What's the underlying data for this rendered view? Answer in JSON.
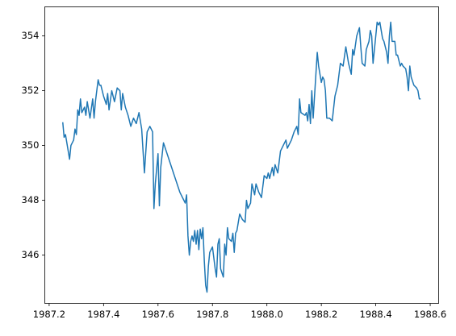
{
  "chart_data": {
    "type": "line",
    "color": "#1f77b4",
    "x": [
      1987.25,
      1987.255,
      1987.26,
      1987.27,
      1987.275,
      1987.28,
      1987.29,
      1987.295,
      1987.3,
      1987.305,
      1987.31,
      1987.315,
      1987.32,
      1987.33,
      1987.335,
      1987.34,
      1987.35,
      1987.36,
      1987.365,
      1987.37,
      1987.38,
      1987.385,
      1987.39,
      1987.4,
      1987.41,
      1987.415,
      1987.42,
      1987.43,
      1987.44,
      1987.45,
      1987.46,
      1987.465,
      1987.47,
      1987.48,
      1987.49,
      1987.5,
      1987.51,
      1987.52,
      1987.53,
      1987.54,
      1987.545,
      1987.55,
      1987.56,
      1987.57,
      1987.58,
      1987.585,
      1987.59,
      1987.6,
      1987.605,
      1987.61,
      1987.62,
      1987.64,
      1987.66,
      1987.68,
      1987.7,
      1987.705,
      1987.71,
      1987.715,
      1987.72,
      1987.725,
      1987.73,
      1987.735,
      1987.74,
      1987.745,
      1987.75,
      1987.755,
      1987.76,
      1987.765,
      1987.77,
      1987.775,
      1987.78,
      1987.785,
      1987.79,
      1987.8,
      1987.81,
      1987.815,
      1987.82,
      1987.825,
      1987.83,
      1987.84,
      1987.845,
      1987.85,
      1987.855,
      1987.86,
      1987.87,
      1987.875,
      1987.88,
      1987.885,
      1987.89,
      1987.9,
      1987.91,
      1987.92,
      1987.925,
      1987.93,
      1987.94,
      1987.945,
      1987.955,
      1987.96,
      1987.97,
      1987.98,
      1987.99,
      1988.0,
      1988.005,
      1988.01,
      1988.02,
      1988.025,
      1988.03,
      1988.04,
      1988.05,
      1988.06,
      1988.07,
      1988.075,
      1988.09,
      1988.1,
      1988.11,
      1988.115,
      1988.12,
      1988.125,
      1988.14,
      1988.145,
      1988.15,
      1988.155,
      1988.16,
      1988.165,
      1988.17,
      1988.18,
      1988.185,
      1988.19,
      1988.2,
      1988.205,
      1988.21,
      1988.215,
      1988.22,
      1988.23,
      1988.24,
      1988.25,
      1988.26,
      1988.27,
      1988.28,
      1988.29,
      1988.3,
      1988.31,
      1988.315,
      1988.32,
      1988.33,
      1988.34,
      1988.345,
      1988.35,
      1988.36,
      1988.365,
      1988.375,
      1988.38,
      1988.385,
      1988.39,
      1988.4,
      1988.405,
      1988.41,
      1988.415,
      1988.42,
      1988.425,
      1988.43,
      1988.44,
      1988.445,
      1988.45,
      1988.455,
      1988.46,
      1988.47,
      1988.475,
      1988.48,
      1988.49,
      1988.495,
      1988.5,
      1988.51,
      1988.515,
      1988.52,
      1988.525,
      1988.53,
      1988.54,
      1988.55,
      1988.555,
      1988.56,
      1988.565
    ],
    "values": [
      350.85,
      350.3,
      350.4,
      349.8,
      349.5,
      350.0,
      350.2,
      350.6,
      350.4,
      351.3,
      351.1,
      351.7,
      351.2,
      351.4,
      351.1,
      351.6,
      351.0,
      351.7,
      351.0,
      351.6,
      352.4,
      352.2,
      352.2,
      351.8,
      351.5,
      351.9,
      351.3,
      352.0,
      351.6,
      352.1,
      352.0,
      351.3,
      351.9,
      351.4,
      351.1,
      350.7,
      351.0,
      350.8,
      351.2,
      350.6,
      349.8,
      349.0,
      350.5,
      350.7,
      350.5,
      347.7,
      348.6,
      349.7,
      347.8,
      349.2,
      350.1,
      349.5,
      348.9,
      348.3,
      347.9,
      348.2,
      346.7,
      346.0,
      346.5,
      346.7,
      346.5,
      346.9,
      346.4,
      346.9,
      346.2,
      346.95,
      346.6,
      347.0,
      345.8,
      344.9,
      344.65,
      345.6,
      346.1,
      346.3,
      345.5,
      345.2,
      346.4,
      346.6,
      345.5,
      345.2,
      346.4,
      346.0,
      347.0,
      346.6,
      346.5,
      346.8,
      346.1,
      346.8,
      346.9,
      347.5,
      347.3,
      347.2,
      348.0,
      347.7,
      347.9,
      348.6,
      348.2,
      348.6,
      348.3,
      348.1,
      348.9,
      348.8,
      349.0,
      348.8,
      349.2,
      348.9,
      349.3,
      349.0,
      349.8,
      350.0,
      350.2,
      349.9,
      350.2,
      350.5,
      350.7,
      350.4,
      351.7,
      351.2,
      351.1,
      351.2,
      350.9,
      351.5,
      350.8,
      352.0,
      351.0,
      352.6,
      353.4,
      352.9,
      352.3,
      352.5,
      352.4,
      352.0,
      351.0,
      351.0,
      350.9,
      351.8,
      352.2,
      353.0,
      352.9,
      353.6,
      353.0,
      352.6,
      353.5,
      353.3,
      354.0,
      354.3,
      353.6,
      353.0,
      352.9,
      353.5,
      353.8,
      354.2,
      354.0,
      353.0,
      354.0,
      354.5,
      354.4,
      354.5,
      354.2,
      353.9,
      353.8,
      353.4,
      353.0,
      354.0,
      354.5,
      353.8,
      353.8,
      353.3,
      353.3,
      352.9,
      353.0,
      352.9,
      352.8,
      352.5,
      352.0,
      352.9,
      352.5,
      352.2,
      352.1,
      352.0,
      351.7,
      351.7
    ],
    "xlim": [
      1987.184,
      1988.631
    ],
    "ylim": [
      344.24,
      355.06
    ],
    "xticks": [
      1987.2,
      1987.4,
      1987.6,
      1987.8,
      {
        "value": 1988,
        "label": "1988.0"
      },
      1988.2,
      1988.4,
      1988.6
    ],
    "yticks": [
      346,
      348,
      350,
      352,
      354
    ]
  }
}
